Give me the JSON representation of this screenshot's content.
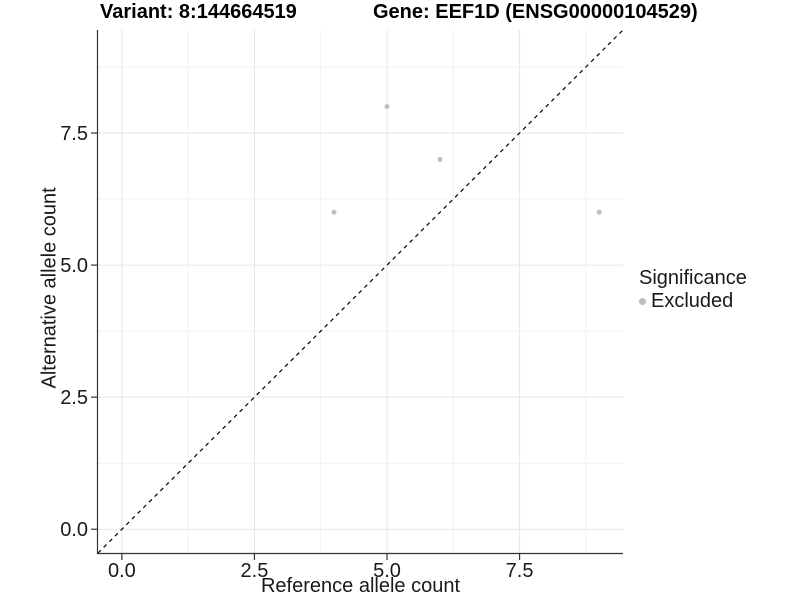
{
  "header": {
    "variant_title": "Variant: 8:144664519",
    "gene_title": "Gene: EEF1D (ENSG00000104529)"
  },
  "chart_data": {
    "type": "scatter",
    "title": "Variant: 8:144664519    Gene: EEF1D (ENSG00000104529)",
    "xlabel": "Reference allele count",
    "ylabel": "Alternative allele count",
    "xlim": [
      -0.45,
      9.45
    ],
    "ylim": [
      -0.45,
      9.45
    ],
    "x_breaks": [
      0,
      2.5,
      5,
      7.5
    ],
    "x_tick_labels": [
      "0.0",
      "2.5",
      "5.0",
      "7.5"
    ],
    "y_breaks": [
      0,
      2.5,
      5,
      7.5
    ],
    "y_tick_labels": [
      "0.0",
      "2.5",
      "5.0",
      "7.5"
    ],
    "x_minor_breaks": [
      1.25,
      3.75,
      6.25,
      8.75
    ],
    "y_minor_breaks": [
      1.25,
      3.75,
      6.25,
      8.75
    ],
    "grid": true,
    "series": [
      {
        "name": "Excluded",
        "color": "#bdbdbd",
        "points": [
          [
            4,
            6
          ],
          [
            5,
            8
          ],
          [
            6,
            7
          ],
          [
            9,
            6
          ]
        ]
      }
    ],
    "identity_line": {
      "style": "dashed",
      "color": "#000000",
      "from": [
        -0.45,
        -0.45
      ],
      "to": [
        9.45,
        9.45
      ]
    },
    "legend": {
      "title": "Significance",
      "position": "right",
      "items": [
        {
          "label": "Excluded",
          "color": "#bdbdbd"
        }
      ]
    },
    "colors": {
      "point": "#bdbdbd",
      "grid_major": "#e5e5e5",
      "grid_minor": "#f1f1f1",
      "axis_line": "#333333",
      "tick_text": "#1a1a1a",
      "reference_line": "#000000"
    }
  }
}
